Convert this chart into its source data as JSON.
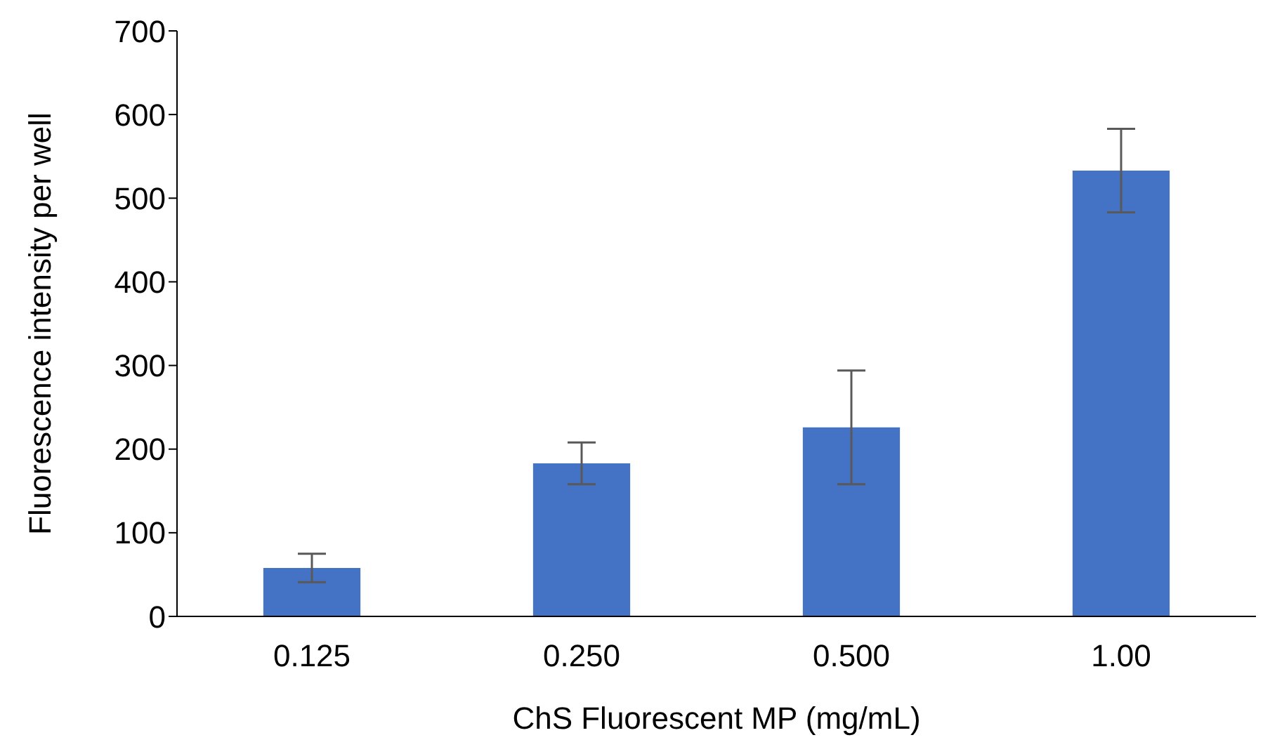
{
  "chart_data": {
    "type": "bar",
    "xlabel": "ChS Fluorescent MP (mg/mL)",
    "ylabel": "Fluorescence intensity per well",
    "categories": [
      "0.125",
      "0.250",
      "0.500",
      "1.00"
    ],
    "values": [
      58,
      183,
      226,
      533
    ],
    "errors": [
      17,
      25,
      68,
      50
    ],
    "color": "#4472c4",
    "ylim": [
      0,
      700
    ],
    "yticks": [
      0,
      100,
      200,
      300,
      400,
      500,
      600,
      700
    ],
    "grid": false,
    "legend": false
  }
}
